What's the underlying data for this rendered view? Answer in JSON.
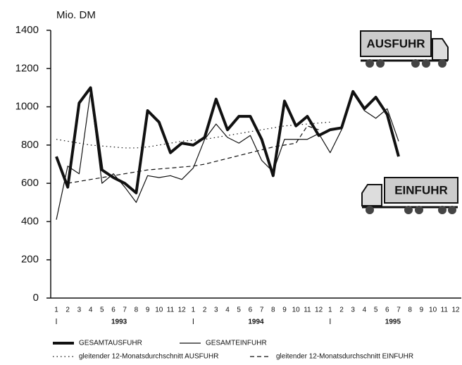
{
  "chart_data": {
    "type": "line",
    "y_label": "Mio. DM",
    "categories": [
      "1",
      "2",
      "3",
      "4",
      "5",
      "6",
      "7",
      "8",
      "9",
      "10",
      "11",
      "12",
      "1",
      "2",
      "3",
      "4",
      "5",
      "6",
      "7",
      "8",
      "9",
      "10",
      "11",
      "12",
      "1",
      "2",
      "3",
      "4",
      "5",
      "6",
      "7",
      "8",
      "9",
      "10",
      "11",
      "12"
    ],
    "year_labels": [
      "1993",
      "1994",
      "1995"
    ],
    "ylim": [
      0,
      1400
    ],
    "yticks": [
      0,
      200,
      400,
      600,
      800,
      1000,
      1200,
      1400
    ],
    "annotations": [
      "AUSFUHR",
      "EINFUHR"
    ],
    "series": [
      {
        "name": "GESAMTAUSFUHR",
        "color": "#111111",
        "line_style": "thick",
        "values": [
          740,
          580,
          1020,
          1100,
          670,
          630,
          600,
          550,
          980,
          920,
          760,
          810,
          800,
          840,
          1040,
          880,
          950,
          950,
          830,
          640,
          1030,
          900,
          950,
          850,
          880,
          890,
          1080,
          990,
          1050,
          960,
          740,
          null,
          null,
          null,
          null,
          null
        ]
      },
      {
        "name": "GESAMTEINFUHR",
        "color": "#111111",
        "line_style": "solid",
        "values": [
          410,
          690,
          650,
          1080,
          600,
          650,
          580,
          500,
          640,
          630,
          640,
          620,
          680,
          830,
          910,
          840,
          810,
          850,
          720,
          660,
          830,
          830,
          830,
          860,
          760,
          880,
          1070,
          980,
          940,
          990,
          820,
          null,
          null,
          null,
          null,
          null
        ]
      },
      {
        "name": "gleitender 12-Monatsdurchschnitt AUSFUHR",
        "color": "#111111",
        "line_style": "dotted",
        "values": [
          830,
          820,
          810,
          800,
          795,
          790,
          785,
          785,
          790,
          800,
          810,
          820,
          825,
          830,
          840,
          850,
          860,
          870,
          880,
          890,
          900,
          905,
          910,
          915,
          920,
          null,
          null,
          null,
          null,
          null,
          null,
          null,
          null,
          null,
          null,
          null
        ]
      },
      {
        "name": "gleitender 12-Monatsdurchschnitt EINFUHR",
        "color": "#111111",
        "line_style": "dashed",
        "values": [
          null,
          600,
          610,
          620,
          630,
          640,
          650,
          660,
          670,
          675,
          680,
          685,
          690,
          700,
          715,
          730,
          745,
          760,
          775,
          790,
          800,
          810,
          900,
          880,
          null,
          null,
          null,
          null,
          null,
          null,
          null,
          null,
          null,
          null,
          null,
          null
        ]
      }
    ]
  }
}
